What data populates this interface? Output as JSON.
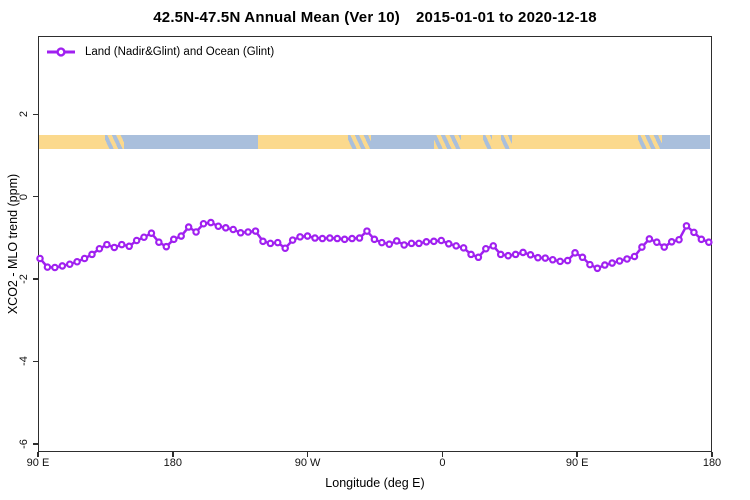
{
  "title": {
    "main": "42.5N-47.5N Annual Mean (Ver 10)",
    "dates": "2015-01-01 to 2020-12-18"
  },
  "legend": {
    "label": "Land (Nadir&Glint) and Ocean (Glint)",
    "marker": "open-circle-on-line"
  },
  "axes": {
    "x": {
      "label": "Longitude (deg E)"
    },
    "y": {
      "label": "XCO2 - MLO trend (ppm)"
    }
  },
  "colors": {
    "curve": "#a020f0",
    "land": "#fbd98d",
    "ocean": "#a9bfdc",
    "axis": "#2e2e2e",
    "text": "#000000"
  },
  "chart_data": {
    "type": "line",
    "title": "42.5N-47.5N Annual Mean (Ver 10)  2015-01-01 to 2020-12-18",
    "xlabel": "Longitude (deg E)",
    "ylabel": "XCO2 - MLO trend (ppm)",
    "grid": false,
    "legend_position": "top-left-inside",
    "x_axis_note": "axis spans 450 degrees of longitude, starting at 90E and wrapping eastward through 180, 90W, 0, 90E to 180; x values below are offsets in degrees from the left edge (90E)",
    "xlim": [
      0,
      450
    ],
    "ylim": [
      -6.2,
      3.9
    ],
    "x_tick_offsets": [
      0,
      90,
      180,
      270,
      360,
      450
    ],
    "x_tick_labels": [
      "90 E",
      "180",
      "90 W",
      "0",
      "90 E",
      "180"
    ],
    "y_ticks": [
      2,
      0,
      -2,
      -4,
      -6
    ],
    "x": [
      0,
      5,
      10,
      15,
      20,
      25,
      30,
      35,
      40,
      45,
      50,
      55,
      60,
      65,
      70,
      75,
      80,
      85,
      90,
      95,
      100,
      105,
      110,
      115,
      120,
      125,
      130,
      135,
      140,
      145,
      150,
      155,
      160,
      165,
      170,
      175,
      180,
      185,
      190,
      195,
      200,
      205,
      210,
      215,
      220,
      225,
      230,
      235,
      240,
      245,
      250,
      255,
      260,
      265,
      270,
      275,
      280,
      285,
      290,
      295,
      300,
      305,
      310,
      315,
      320,
      325,
      330,
      335,
      340,
      345,
      350,
      355,
      360,
      365,
      370,
      375,
      380,
      385,
      390,
      395,
      400,
      405,
      410,
      415,
      420,
      425,
      430,
      435,
      440,
      445,
      450
    ],
    "series": [
      {
        "name": "Land (Nadir&Glint) and Ocean (Glint)",
        "color": "#a020f0",
        "marker": "open-circle",
        "values": [
          -1.52,
          -1.73,
          -1.74,
          -1.7,
          -1.66,
          -1.6,
          -1.52,
          -1.42,
          -1.28,
          -1.18,
          -1.25,
          -1.18,
          -1.22,
          -1.08,
          -1.0,
          -0.9,
          -1.12,
          -1.23,
          -1.05,
          -0.97,
          -0.75,
          -0.87,
          -0.67,
          -0.64,
          -0.73,
          -0.77,
          -0.81,
          -0.89,
          -0.87,
          -0.85,
          -1.1,
          -1.15,
          -1.13,
          -1.27,
          -1.07,
          -0.99,
          -0.97,
          -1.02,
          -1.03,
          -1.02,
          -1.03,
          -1.05,
          -1.03,
          -1.02,
          -0.85,
          -1.05,
          -1.13,
          -1.17,
          -1.09,
          -1.19,
          -1.15,
          -1.15,
          -1.11,
          -1.1,
          -1.08,
          -1.16,
          -1.21,
          -1.26,
          -1.42,
          -1.49,
          -1.28,
          -1.21,
          -1.42,
          -1.45,
          -1.42,
          -1.37,
          -1.43,
          -1.5,
          -1.51,
          -1.55,
          -1.59,
          -1.57,
          -1.38,
          -1.49,
          -1.67,
          -1.76,
          -1.68,
          -1.63,
          -1.58,
          -1.53,
          -1.47,
          -1.24,
          -1.04,
          -1.12,
          -1.24,
          -1.11,
          -1.06,
          -0.72,
          -0.88,
          -1.05,
          -1.12
        ]
      }
    ],
    "surface_strip": {
      "description": "horizontal land/ocean surface-type band",
      "y_top": 1.53,
      "y_bottom": 1.17,
      "land_color": "#fbd98d",
      "ocean_color": "#a9bfdc",
      "segments": [
        [
          0,
          44,
          "land"
        ],
        [
          44,
          57,
          "mixed"
        ],
        [
          57,
          147,
          "ocean"
        ],
        [
          147,
          207,
          "land"
        ],
        [
          207,
          223,
          "mixed"
        ],
        [
          223,
          265,
          "ocean"
        ],
        [
          265,
          283,
          "mixed"
        ],
        [
          283,
          298,
          "land"
        ],
        [
          298,
          304,
          "mixed"
        ],
        [
          304,
          310,
          "land"
        ],
        [
          310,
          317,
          "mixed"
        ],
        [
          317,
          402,
          "land"
        ],
        [
          402,
          418,
          "mixed"
        ],
        [
          418,
          450,
          "ocean"
        ]
      ]
    }
  }
}
